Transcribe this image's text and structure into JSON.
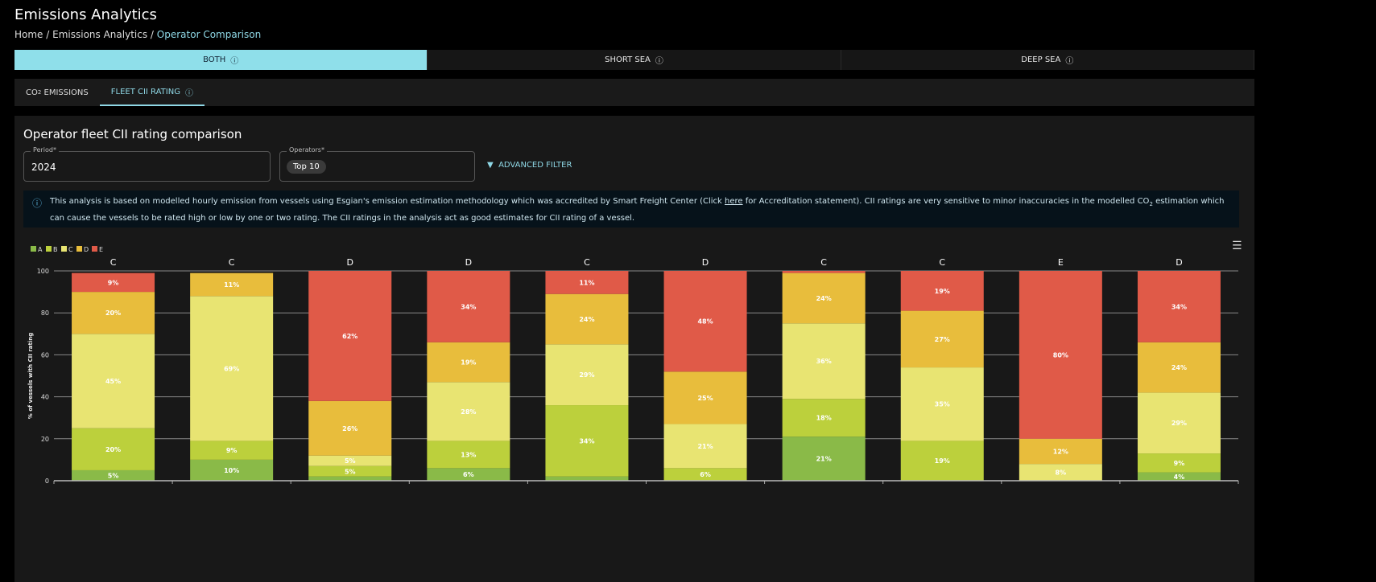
{
  "header": {
    "title": "Emissions Analytics",
    "breadcrumb": [
      "Home",
      "Emissions Analytics",
      "Operator Comparison"
    ],
    "sep": "/"
  },
  "segments": [
    {
      "label": "BOTH",
      "active": true
    },
    {
      "label": "SHORT SEA",
      "active": false
    },
    {
      "label": "DEEP SEA",
      "active": false
    }
  ],
  "help_icon": "?",
  "tabs": [
    {
      "label_prefix": "CO",
      "label_sub": "2",
      "label_suffix": " EMISSIONS",
      "active": false
    },
    {
      "label": "FLEET CII RATING",
      "active": true
    }
  ],
  "panel": {
    "title": "Operator fleet CII rating comparison",
    "period": {
      "label": "Period*",
      "value": "2024"
    },
    "operators": {
      "label": "Operators*",
      "chip": "Top 10"
    },
    "advanced_filter": "ADVANCED FILTER",
    "info": {
      "part1": "This analysis is based on modelled hourly emission from vessels using Esgian's emission estimation methodology which was accredited by Smart Freight Center (Click ",
      "link": "here",
      "part2": " for Accreditation statement). CII ratings are very sensitive to minor inaccuracies in the modelled CO",
      "sub": "2",
      "part3": " estimation which can cause the vessels to be rated high or low by one or two rating. The CII ratings in the analysis act as good estimates for CII rating of a vessel."
    }
  },
  "chart_data": {
    "type": "bar",
    "stacked": true,
    "ylabel": "% of vessels with CII rating",
    "ylim": [
      0,
      100
    ],
    "yticks": [
      0,
      20,
      40,
      60,
      80,
      100
    ],
    "grid": true,
    "legend": "top-left",
    "top_labels": [
      "C",
      "C",
      "D",
      "D",
      "C",
      "D",
      "C",
      "C",
      "E",
      "D"
    ],
    "series": [
      {
        "name": "A",
        "color": "#8aba48",
        "values": [
          5,
          10,
          2,
          6,
          2,
          0,
          21,
          0,
          0,
          4
        ]
      },
      {
        "name": "B",
        "color": "#bcd03c",
        "values": [
          20,
          9,
          5,
          13,
          34,
          6,
          18,
          19,
          0,
          9
        ]
      },
      {
        "name": "C",
        "color": "#e8e472",
        "values": [
          45,
          69,
          5,
          28,
          29,
          21,
          36,
          35,
          8,
          29
        ]
      },
      {
        "name": "D",
        "color": "#e8bd3c",
        "values": [
          20,
          11,
          26,
          19,
          24,
          25,
          24,
          27,
          12,
          24
        ]
      },
      {
        "name": "E",
        "color": "#e05a48",
        "values": [
          9,
          0,
          62,
          34,
          11,
          48,
          1,
          19,
          80,
          34
        ]
      }
    ]
  }
}
